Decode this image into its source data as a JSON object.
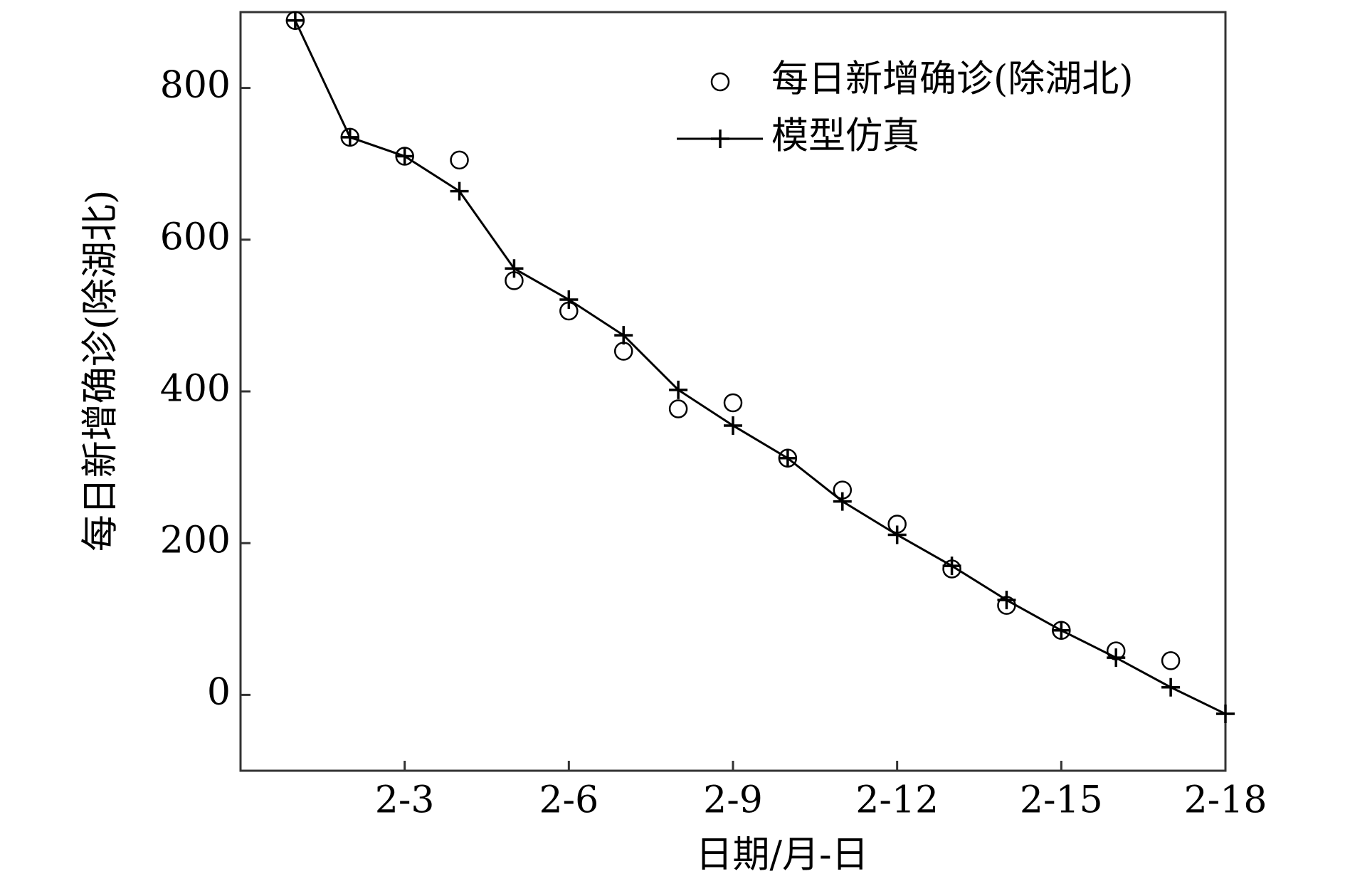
{
  "chart_data": {
    "type": "line",
    "xlabel": "日期/月-日",
    "ylabel": "每日新增确诊(除湖北)",
    "series": [
      {
        "name": "每日新增确诊(除湖北)",
        "color": "#000000",
        "marker": "circle",
        "line": false,
        "x": [
          1,
          2,
          3,
          4,
          5,
          6,
          7,
          8,
          9,
          10,
          11,
          12,
          13,
          14,
          15,
          16,
          17
        ],
        "values": [
          889,
          735,
          710,
          705,
          546,
          506,
          453,
          377,
          385,
          312,
          270,
          225,
          166,
          118,
          85,
          58,
          45
        ]
      },
      {
        "name": "模型仿真",
        "color": "#000000",
        "marker": "plus",
        "line": true,
        "x": [
          1,
          2,
          3,
          4,
          5,
          6,
          7,
          8,
          9,
          10,
          11,
          12,
          13,
          14,
          15,
          16,
          17,
          18
        ],
        "values": [
          889,
          735,
          710,
          664,
          562,
          521,
          474,
          402,
          355,
          312,
          255,
          211,
          170,
          125,
          85,
          49,
          10,
          -25
        ]
      }
    ],
    "xlim": [
      0,
      18
    ],
    "xticks": [
      {
        "value": 3,
        "label": "2-3"
      },
      {
        "value": 6,
        "label": "2-6"
      },
      {
        "value": 9,
        "label": "2-9"
      },
      {
        "value": 12,
        "label": "2-12"
      },
      {
        "value": 15,
        "label": "2-15"
      },
      {
        "value": 18,
        "label": "2-18"
      }
    ],
    "ylim": [
      -100,
      900
    ],
    "yticks": [
      0,
      200,
      400,
      600,
      800
    ],
    "legend": "upper right"
  }
}
